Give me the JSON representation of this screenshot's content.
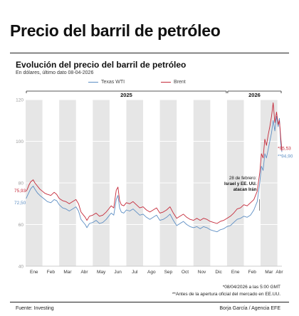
{
  "header": {
    "title": "Precio del barril de petróleo",
    "subtitle": "Evolución del precio del barril de petróleo",
    "note": "En dólares, último dato 08-04-2026"
  },
  "footer": {
    "footnote_1": "*08/04/2026 a las 5:00 GMT",
    "footnote_2": "**Antes de la apertura oficial del mercado en EE.UU.",
    "source": "Fuente: Investing",
    "credit": "Borja García / Agencia EFE"
  },
  "colors": {
    "wti": "#5e8fc4",
    "brent": "#c52a3a",
    "band": "#e6e6e6"
  },
  "chart_data": {
    "type": "line",
    "title": "Evolución del precio del barril de petróleo",
    "ylim": [
      40,
      120
    ],
    "yticks": [
      40,
      60,
      80,
      100,
      120
    ],
    "years": [
      {
        "label": "2025",
        "start": 0,
        "end": 12
      },
      {
        "label": "2026",
        "start": 12,
        "end": 15.27
      }
    ],
    "month_labels": [
      "Ene",
      "Feb",
      "Mar",
      "Abr",
      "May",
      "Jun",
      "Jul",
      "Ago",
      "Sep",
      "Oct",
      "Nov",
      "Dic",
      "Ene",
      "Feb",
      "Mar",
      "Abr"
    ],
    "start_labels": {
      "wti": "72,50",
      "brent": "75,93"
    },
    "end_labels": {
      "wti": "94,90",
      "brent": "95,53"
    },
    "annotation": {
      "lines": [
        "28 de febrero:",
        "Israel y EE. UU.",
        "atacan Irán"
      ],
      "x": 13.93
    },
    "series": [
      {
        "name": "Texas WTI",
        "x": [
          0.03,
          0.1,
          0.2,
          0.3,
          0.45,
          0.55,
          0.7,
          0.85,
          1.0,
          1.15,
          1.3,
          1.5,
          1.7,
          1.85,
          2.0,
          2.2,
          2.4,
          2.6,
          2.8,
          3.0,
          3.15,
          3.3,
          3.45,
          3.55,
          3.65,
          3.8,
          4.0,
          4.2,
          4.4,
          4.6,
          4.8,
          4.95,
          5.1,
          5.25,
          5.4,
          5.5,
          5.6,
          5.7,
          5.85,
          6.0,
          6.2,
          6.4,
          6.6,
          6.8,
          7.0,
          7.2,
          7.4,
          7.6,
          7.8,
          8.0,
          8.2,
          8.4,
          8.6,
          8.8,
          9.0,
          9.2,
          9.4,
          9.6,
          9.8,
          10.0,
          10.2,
          10.4,
          10.6,
          10.8,
          11.0,
          11.2,
          11.4,
          11.6,
          11.8,
          12.0,
          12.2,
          12.4,
          12.6,
          12.8,
          13.0,
          13.2,
          13.4,
          13.6,
          13.8,
          13.95,
          14.05,
          14.15,
          14.25,
          14.35,
          14.45,
          14.55,
          14.65,
          14.75,
          14.85,
          14.95,
          15.05,
          15.12,
          15.2,
          15.27
        ],
        "values": [
          72.5,
          73.8,
          75.5,
          77.2,
          78.5,
          77.0,
          75.2,
          74.0,
          73.0,
          72.0,
          71.0,
          70.5,
          72.0,
          71.5,
          69.5,
          68.0,
          67.5,
          66.5,
          67.5,
          68.5,
          66.5,
          62.5,
          61.0,
          60.0,
          58.5,
          60.5,
          61.0,
          62.0,
          60.5,
          61.0,
          62.5,
          64.0,
          65.5,
          64.5,
          72.0,
          74.0,
          68.0,
          66.0,
          65.5,
          67.0,
          66.5,
          67.5,
          66.0,
          64.5,
          65.0,
          63.5,
          62.5,
          63.5,
          64.5,
          62.0,
          62.5,
          63.5,
          65.0,
          62.0,
          59.5,
          60.5,
          61.5,
          60.0,
          59.0,
          58.5,
          59.0,
          58.0,
          59.0,
          58.5,
          57.5,
          57.0,
          56.5,
          57.5,
          58.0,
          59.0,
          59.5,
          61.0,
          62.5,
          63.0,
          64.0,
          63.5,
          64.5,
          67.0,
          71.0,
          80.0,
          88.0,
          86.0,
          94.0,
          92.0,
          96.0,
          100.0,
          104.0,
          110.0,
          105.0,
          112.0,
          107.0,
          111.0,
          99.0,
          94.9
        ]
      },
      {
        "name": "Brent",
        "x": [
          0.03,
          0.1,
          0.2,
          0.3,
          0.45,
          0.55,
          0.7,
          0.85,
          1.0,
          1.15,
          1.3,
          1.5,
          1.7,
          1.85,
          2.0,
          2.2,
          2.4,
          2.6,
          2.8,
          3.0,
          3.15,
          3.3,
          3.45,
          3.55,
          3.65,
          3.8,
          4.0,
          4.2,
          4.4,
          4.6,
          4.8,
          4.95,
          5.1,
          5.25,
          5.4,
          5.5,
          5.6,
          5.7,
          5.85,
          6.0,
          6.2,
          6.4,
          6.6,
          6.8,
          7.0,
          7.2,
          7.4,
          7.6,
          7.8,
          8.0,
          8.2,
          8.4,
          8.6,
          8.8,
          9.0,
          9.2,
          9.4,
          9.6,
          9.8,
          10.0,
          10.2,
          10.4,
          10.6,
          10.8,
          11.0,
          11.2,
          11.4,
          11.6,
          11.8,
          12.0,
          12.2,
          12.4,
          12.6,
          12.8,
          13.0,
          13.2,
          13.4,
          13.6,
          13.8,
          13.95,
          14.05,
          14.15,
          14.25,
          14.35,
          14.45,
          14.55,
          14.65,
          14.75,
          14.85,
          14.95,
          15.05,
          15.12,
          15.2,
          15.27
        ],
        "values": [
          75.93,
          77.0,
          79.0,
          80.5,
          81.5,
          80.0,
          78.5,
          77.0,
          76.0,
          75.0,
          74.5,
          74.0,
          75.5,
          74.5,
          72.5,
          71.5,
          71.0,
          70.0,
          71.0,
          72.0,
          70.0,
          66.0,
          64.5,
          63.5,
          62.0,
          64.0,
          64.5,
          65.5,
          64.0,
          64.5,
          66.0,
          67.5,
          69.0,
          68.0,
          76.5,
          78.0,
          71.5,
          69.5,
          69.0,
          70.5,
          70.0,
          71.0,
          69.5,
          68.0,
          68.5,
          67.0,
          66.0,
          67.0,
          68.0,
          65.5,
          66.0,
          67.0,
          68.5,
          65.5,
          63.0,
          64.0,
          65.0,
          63.5,
          62.5,
          62.0,
          63.0,
          62.0,
          63.0,
          62.5,
          61.5,
          61.0,
          60.5,
          61.5,
          62.0,
          63.0,
          64.0,
          65.5,
          67.5,
          68.0,
          69.5,
          69.0,
          70.5,
          72.0,
          76.0,
          85.0,
          94.0,
          92.0,
          101.0,
          98.0,
          103.0,
          107.0,
          112.0,
          118.5,
          109.0,
          114.0,
          108.0,
          110.0,
          102.0,
          95.53
        ]
      }
    ]
  }
}
